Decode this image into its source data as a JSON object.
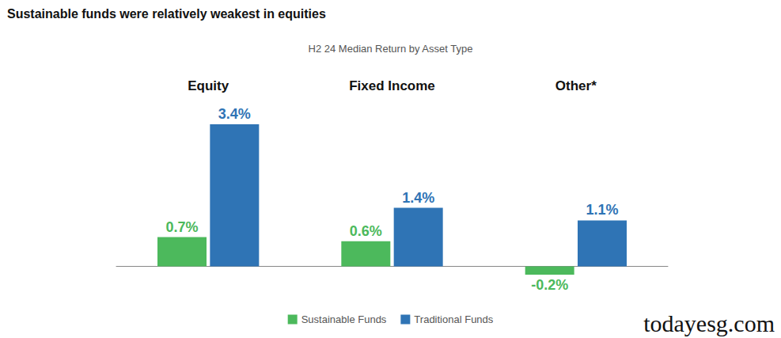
{
  "chart_data": {
    "type": "bar",
    "title": "Sustainable funds were relatively weakest in equities",
    "subtitle": "H2 24 Median Return by Asset Type",
    "categories": [
      "Equity",
      "Fixed Income",
      "Other*"
    ],
    "series": [
      {
        "name": "Sustainable Funds",
        "color": "#4cb95c",
        "values": [
          0.7,
          0.6,
          -0.2
        ],
        "value_labels": [
          "0.7%",
          "0.6%",
          "-0.2%"
        ]
      },
      {
        "name": "Traditional Funds",
        "color": "#2f74b5",
        "values": [
          3.4,
          1.4,
          1.1
        ],
        "value_labels": [
          "3.4%",
          "1.4%",
          "1.1%"
        ]
      }
    ],
    "ylim": [
      -0.2,
      3.4
    ],
    "grid": false,
    "legend": "bottom",
    "data_labels": true,
    "tick_labels": "x",
    "annotations": [
      "todayesg.com"
    ]
  }
}
